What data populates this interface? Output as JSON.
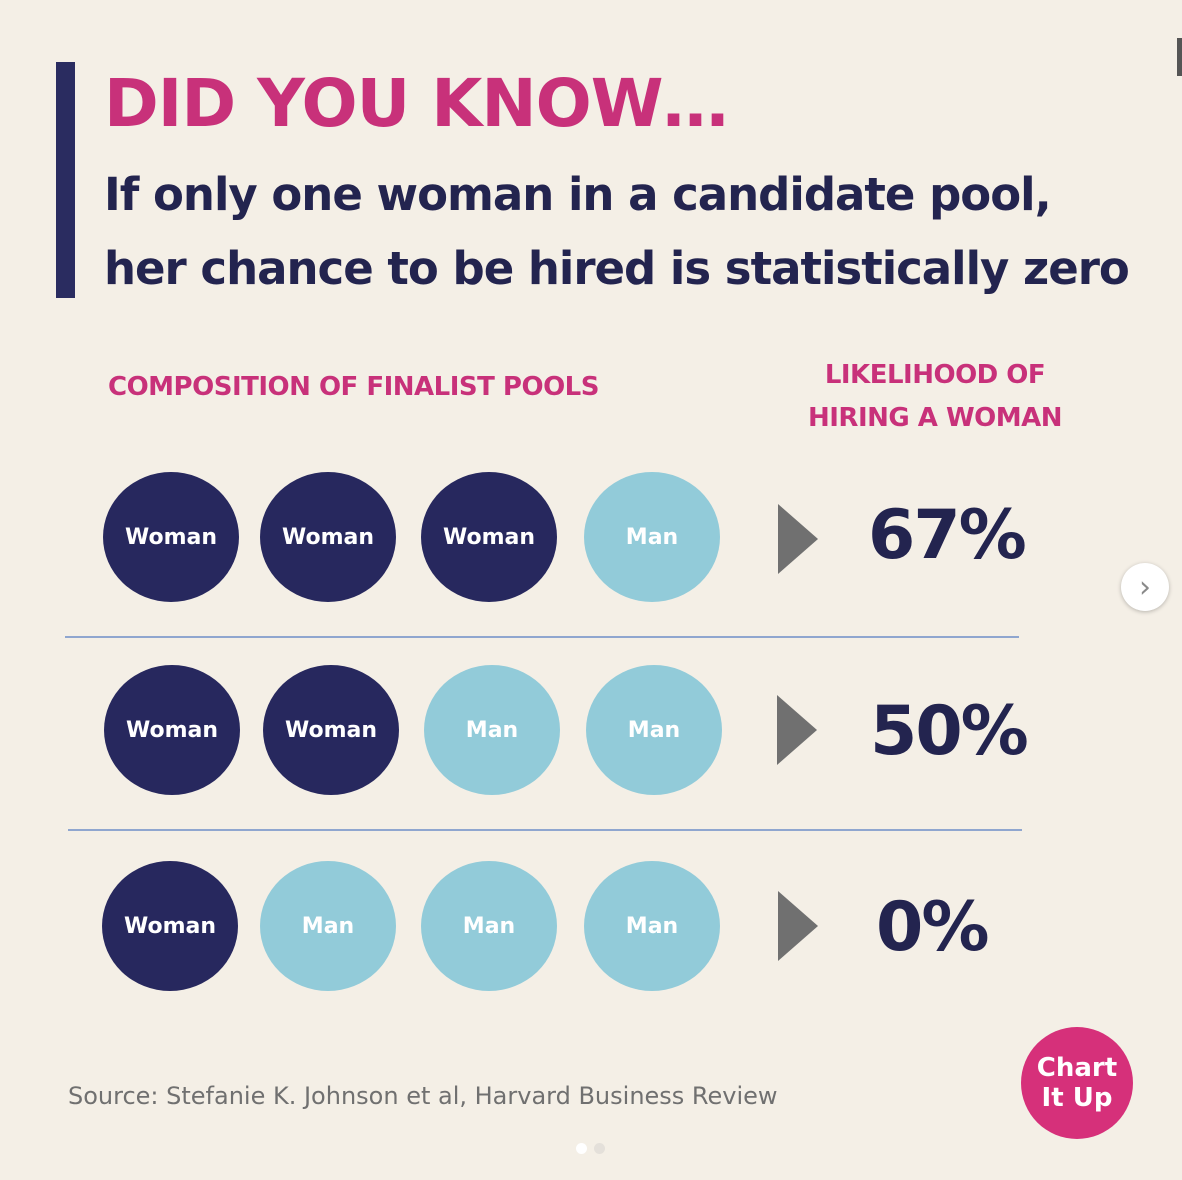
{
  "header": {
    "headline": "DID YOU KNOW…",
    "subhead_line1": "If only one woman in a candidate pool,",
    "subhead_line2": "her chance to be hired is statistically zero"
  },
  "columns": {
    "left_label": "COMPOSITION OF FINALIST POOLS",
    "right_label_line1": "LIKELIHOOD OF",
    "right_label_line2": "HIRING A WOMAN"
  },
  "rows": [
    {
      "pool": [
        "Woman",
        "Woman",
        "Woman",
        "Man"
      ],
      "likelihood": "67%"
    },
    {
      "pool": [
        "Woman",
        "Woman",
        "Man",
        "Man"
      ],
      "likelihood": "50%"
    },
    {
      "pool": [
        "Woman",
        "Man",
        "Man",
        "Man"
      ],
      "likelihood": "0%"
    }
  ],
  "source": "Source: Stefanie K. Johnson et al, Harvard Business Review",
  "logo": {
    "line1": "Chart",
    "line2": "It Up"
  },
  "carousel": {
    "next_icon": "chevron-right-icon",
    "pages": 2,
    "active_page": 1
  },
  "colors": {
    "accent_pink": "#c8317a",
    "navy": "#23244f",
    "woman": "#27285e",
    "man": "#92cbd9",
    "background": "#f4efe6"
  }
}
